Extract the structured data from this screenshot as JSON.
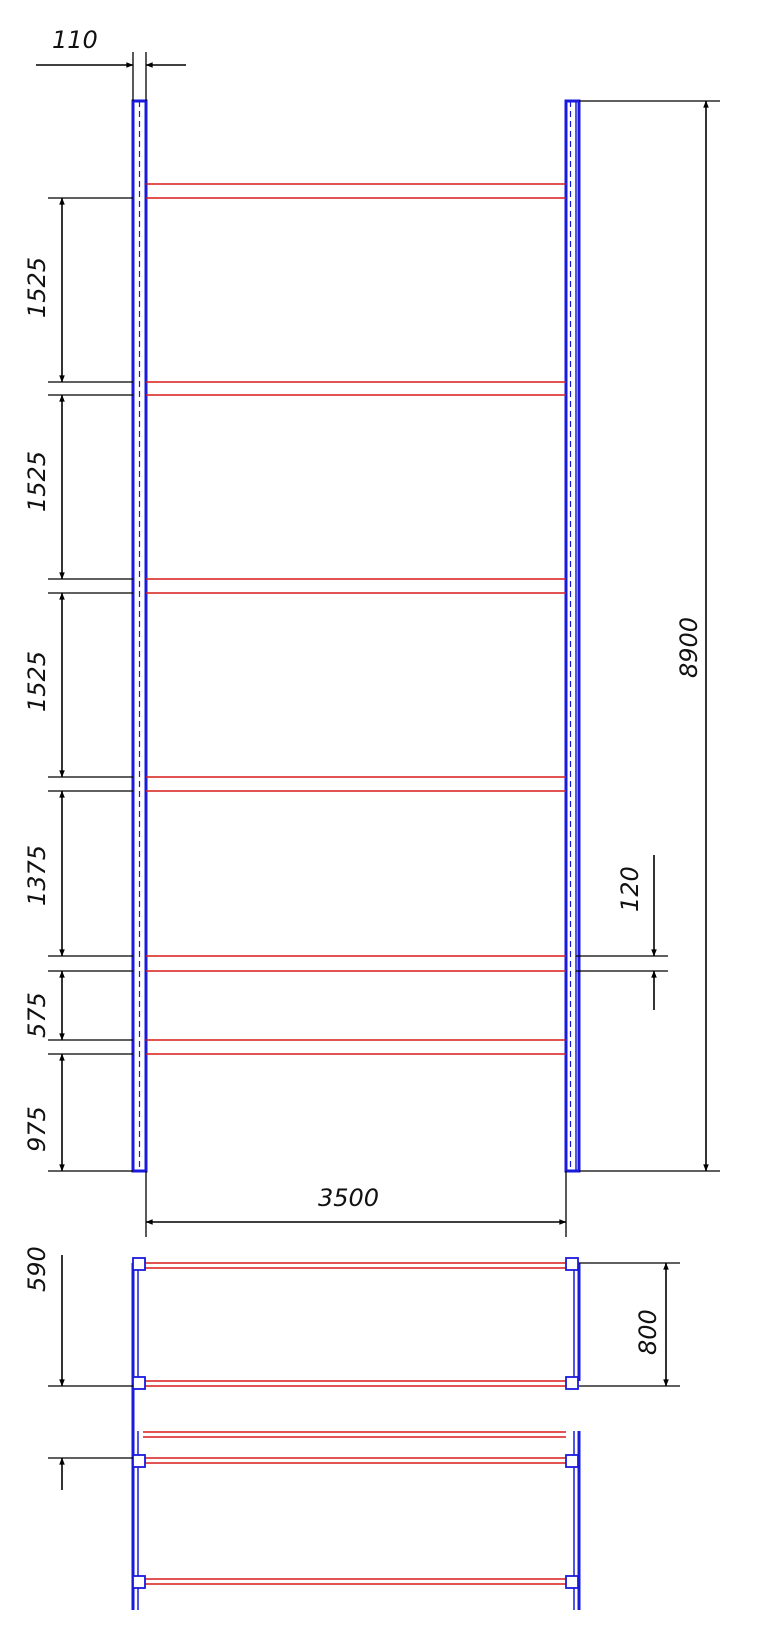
{
  "colors": {
    "frame": "#1a1adc",
    "beam": "#d81a1a",
    "dimension": "#000000",
    "background": "#ffffff"
  },
  "front_view": {
    "post_width_label": "110",
    "overall_height_label": "8900",
    "span_label": "3500",
    "beam_thickness_label": "120",
    "level_spacing_labels": [
      "1525",
      "1525",
      "1525",
      "1375",
      "575",
      "975"
    ]
  },
  "plan_view": {
    "top_bay_label": "800",
    "left_bay_label": "590"
  }
}
